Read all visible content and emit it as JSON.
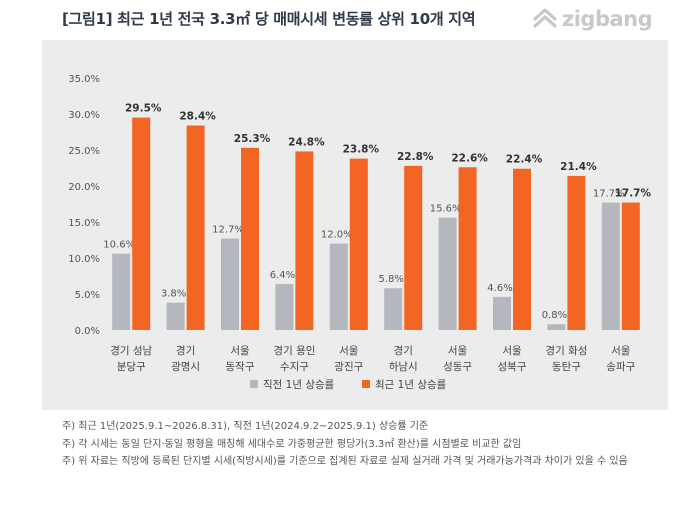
{
  "header": {
    "title": "[그림1] 최근 1년 전국 3.3㎡  당 매매시세 변동률 상위 10개 지역",
    "logo_text": "zigbang"
  },
  "chart_data": {
    "type": "bar",
    "categories": [
      [
        "경기 성남",
        "분당구"
      ],
      [
        "경기",
        "광명시"
      ],
      [
        "서울",
        "동작구"
      ],
      [
        "경기 용인",
        "수지구"
      ],
      [
        "서울",
        "광진구"
      ],
      [
        "경기",
        "하남시"
      ],
      [
        "서울",
        "성동구"
      ],
      [
        "서울",
        "성북구"
      ],
      [
        "경기 화성",
        "동탄구"
      ],
      [
        "서울",
        "송파구"
      ]
    ],
    "series": [
      {
        "name": "직전 1년 상승률",
        "color": "#b4b7bd",
        "values": [
          10.6,
          3.8,
          12.7,
          6.4,
          12.0,
          5.8,
          15.6,
          4.6,
          0.8,
          17.7
        ],
        "labels": [
          "10.6%",
          "3.8%",
          "12.7%",
          "6.4%",
          "12.0%",
          "5.8%",
          "15.6%",
          "4.6%",
          "0.8%",
          "17.7%"
        ]
      },
      {
        "name": "최근 1년 상승률",
        "color": "#f26522",
        "values": [
          29.5,
          28.4,
          25.3,
          24.8,
          23.8,
          22.8,
          22.6,
          22.4,
          21.4,
          17.7
        ],
        "labels": [
          "29.5%",
          "28.4%",
          "25.3%",
          "24.8%",
          "23.8%",
          "22.8%",
          "22.6%",
          "22.4%",
          "21.4%",
          "17.7%"
        ]
      }
    ],
    "yticks": [
      0,
      5,
      10,
      15,
      20,
      25,
      30,
      35
    ],
    "ytick_labels": [
      "0.0%",
      "5.0%",
      "10.0%",
      "15.0%",
      "20.0%",
      "25.0%",
      "30.0%",
      "35.0%"
    ],
    "ylim": [
      0,
      35
    ],
    "grid": false,
    "legend_position": "bottom"
  },
  "notes": [
    "주) 최근 1년(2025.9.1~2026.8.31),  직전 1년(2024.9.2~2025.9.1)  상승률 기준",
    "주) 각 시세는 동일 단지·동일 평형을 매칭해 세대수로 가중평균한 평당가(3.3㎡ 환산)를 시점별로 비교한 값임",
    "주) 위 자료는 직방에 등록된 단지별 시세(직방시세)를 기준으로 집계된 자료로 실제 실거래 가격 및 거래가능가격과 차이가 있을 수 있음"
  ]
}
